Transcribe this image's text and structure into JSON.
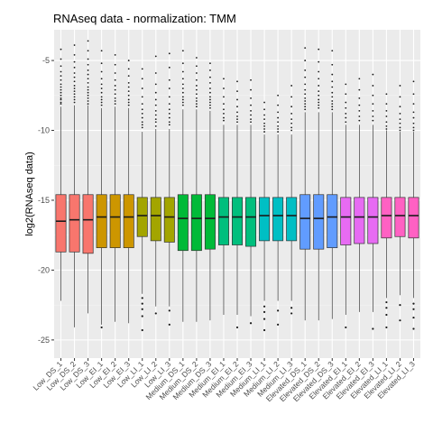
{
  "chart_data": {
    "type": "boxplot",
    "title": "RNAseq data - normalization: TMM",
    "xlabel": "",
    "ylabel": "log2(RNAseq data)",
    "ylim": [
      -26.3,
      -2.8
    ],
    "yticks": [
      -5,
      -10,
      -15,
      -20,
      -25
    ],
    "yticks_labels": [
      "-5",
      "-10",
      "-15",
      "-20",
      "-25"
    ],
    "grid": true,
    "legend": "none",
    "categories": [
      "Low_DS_1",
      "Low_DS_2",
      "Low_DS_3",
      "Low_EI_1",
      "Low_EI_2",
      "Low_EI_3",
      "Low_LI_1",
      "Low_LI_2",
      "Low_LI_3",
      "Medium_DS_1",
      "Medium_DS_2",
      "Medium_DS_3",
      "Medium_EI_1",
      "Medium_EI_2",
      "Medium_EI_3",
      "Medium_LI_1",
      "Medium_LI_2",
      "Medium_LI_3",
      "Elevated_DS_1",
      "Elevated_DS_2",
      "Elevated_DS_3",
      "Elevated_EI_1",
      "Elevated_EI_2",
      "Elevated_EI_3",
      "Elevated_LI_1",
      "Elevated_LI_2",
      "Elevated_LI_3"
    ],
    "colors": [
      "#F8766D",
      "#F8766D",
      "#F8766D",
      "#CD9600",
      "#CD9600",
      "#CD9600",
      "#A3A500",
      "#A3A500",
      "#A3A500",
      "#00BA38",
      "#00BA38",
      "#00BA38",
      "#00BF7D",
      "#00BF7D",
      "#00BF7D",
      "#00BFC4",
      "#00BFC4",
      "#00BFC4",
      "#619CFF",
      "#619CFF",
      "#619CFF",
      "#E76BF3",
      "#E76BF3",
      "#E76BF3",
      "#FF61C3",
      "#FF61C3",
      "#FF61C3"
    ],
    "boxes": [
      {
        "q1": -18.7,
        "median": -16.5,
        "q3": -14.6,
        "whisker_low": -22.2,
        "whisker_high": -8.3
      },
      {
        "q1": -18.7,
        "median": -16.4,
        "q3": -14.6,
        "whisker_low": -24.1,
        "whisker_high": -8.2
      },
      {
        "q1": -18.8,
        "median": -16.4,
        "q3": -14.6,
        "whisker_low": -23.1,
        "whisker_high": -8.2
      },
      {
        "q1": -18.4,
        "median": -16.2,
        "q3": -14.6,
        "whisker_low": -23.9,
        "whisker_high": -8.4
      },
      {
        "q1": -18.4,
        "median": -16.2,
        "q3": -14.6,
        "whisker_low": -23.7,
        "whisker_high": -8.3
      },
      {
        "q1": -18.4,
        "median": -16.2,
        "q3": -14.6,
        "whisker_low": -23.8,
        "whisker_high": -8.4
      },
      {
        "q1": -17.6,
        "median": -16.1,
        "q3": -14.8,
        "whisker_low": -21.7,
        "whisker_high": -10.1
      },
      {
        "q1": -17.9,
        "median": -16.1,
        "q3": -14.8,
        "whisker_low": -22.6,
        "whisker_high": -9.9
      },
      {
        "q1": -18.0,
        "median": -16.2,
        "q3": -14.8,
        "whisker_low": -22.6,
        "whisker_high": -9.9
      },
      {
        "q1": -18.6,
        "median": -16.3,
        "q3": -14.6,
        "whisker_low": -23.7,
        "whisker_high": -8.5
      },
      {
        "q1": -18.6,
        "median": -16.3,
        "q3": -14.6,
        "whisker_low": -23.7,
        "whisker_high": -8.5
      },
      {
        "q1": -18.5,
        "median": -16.3,
        "q3": -14.6,
        "whisker_low": -23.6,
        "whisker_high": -8.6
      },
      {
        "q1": -18.2,
        "median": -16.2,
        "q3": -14.8,
        "whisker_low": -23.2,
        "whisker_high": -9.6
      },
      {
        "q1": -18.2,
        "median": -16.2,
        "q3": -14.8,
        "whisker_low": -23.2,
        "whisker_high": -9.6
      },
      {
        "q1": -18.3,
        "median": -16.2,
        "q3": -14.8,
        "whisker_low": -23.3,
        "whisker_high": -9.6
      },
      {
        "q1": -17.9,
        "median": -16.1,
        "q3": -14.8,
        "whisker_low": -22.2,
        "whisker_high": -10.3
      },
      {
        "q1": -17.9,
        "median": -16.1,
        "q3": -14.8,
        "whisker_low": -22.2,
        "whisker_high": -10.3
      },
      {
        "q1": -17.9,
        "median": -16.1,
        "q3": -14.8,
        "whisker_low": -22.2,
        "whisker_high": -10.3
      },
      {
        "q1": -18.5,
        "median": -16.3,
        "q3": -14.6,
        "whisker_low": -23.6,
        "whisker_high": -8.7
      },
      {
        "q1": -18.5,
        "median": -16.3,
        "q3": -14.6,
        "whisker_low": -23.6,
        "whisker_high": -8.7
      },
      {
        "q1": -18.4,
        "median": -16.2,
        "q3": -14.6,
        "whisker_low": -23.5,
        "whisker_high": -8.7
      },
      {
        "q1": -18.2,
        "median": -16.2,
        "q3": -14.8,
        "whisker_low": -23.2,
        "whisker_high": -9.6
      },
      {
        "q1": -18.1,
        "median": -16.2,
        "q3": -14.8,
        "whisker_low": -23.0,
        "whisker_high": -9.6
      },
      {
        "q1": -18.1,
        "median": -16.2,
        "q3": -14.8,
        "whisker_low": -23.0,
        "whisker_high": -9.6
      },
      {
        "q1": -17.7,
        "median": -16.1,
        "q3": -14.8,
        "whisker_low": -22.0,
        "whisker_high": -10.0
      },
      {
        "q1": -17.6,
        "median": -16.1,
        "q3": -14.8,
        "whisker_low": -21.8,
        "whisker_high": -10.1
      },
      {
        "q1": -17.7,
        "median": -16.1,
        "q3": -14.8,
        "whisker_low": -22.0,
        "whisker_high": -10.1
      }
    ],
    "outliers_high": [
      [
        -4.2,
        -4.9,
        -5.4,
        -5.8,
        -6.1,
        -6.4,
        -6.7,
        -6.9,
        -7.1,
        -7.3,
        -7.5,
        -7.7,
        -7.8,
        -8.0,
        -8.1
      ],
      [
        -3.9,
        -4.6,
        -5.1,
        -5.5,
        -5.9,
        -6.2,
        -6.5,
        -6.8,
        -7.0,
        -7.2,
        -7.4,
        -7.6,
        -7.8,
        -8.0
      ],
      [
        -3.6,
        -4.3,
        -4.9,
        -5.3,
        -5.7,
        -6.0,
        -6.3,
        -6.6,
        -6.9,
        -7.1,
        -7.3,
        -7.5,
        -7.7,
        -7.9,
        -8.1
      ],
      [
        -4.3,
        -5.2,
        -5.8,
        -6.3,
        -6.7,
        -7.0,
        -7.3,
        -7.6,
        -7.8,
        -8.0,
        -8.2
      ],
      [
        -4.6,
        -5.3,
        -5.9,
        -6.4,
        -6.8,
        -7.1,
        -7.4,
        -7.7,
        -7.9,
        -8.1
      ],
      [
        -5.0,
        -5.6,
        -6.1,
        -6.6,
        -6.9,
        -7.2,
        -7.5,
        -7.8,
        -8.0,
        -8.2
      ],
      [
        -5.6,
        -6.3,
        -7.0,
        -7.6,
        -8.1,
        -8.5,
        -8.8,
        -9.1,
        -9.4,
        -9.6,
        -9.8
      ],
      [
        -4.7,
        -5.9,
        -6.7,
        -7.3,
        -7.8,
        -8.2,
        -8.6,
        -8.9,
        -9.2,
        -9.4,
        -9.7
      ],
      [
        -4.5,
        -5.5,
        -6.4,
        -7.0,
        -7.6,
        -8.1,
        -8.5,
        -8.8,
        -9.1,
        -9.4,
        -9.6
      ],
      [
        -4.3,
        -5.2,
        -5.8,
        -6.3,
        -6.7,
        -7.0,
        -7.3,
        -7.6,
        -7.8,
        -8.0,
        -8.2
      ],
      [
        -4.8,
        -5.4,
        -5.9,
        -6.4,
        -6.8,
        -7.1,
        -7.4,
        -7.7,
        -7.9,
        -8.1,
        -8.3
      ],
      [
        -5.2,
        -5.7,
        -6.2,
        -6.6,
        -7.0,
        -7.3,
        -7.6,
        -7.8,
        -8.0,
        -8.2,
        -8.4
      ],
      [
        -6.3,
        -7.0,
        -7.6,
        -8.1,
        -8.5,
        -8.8,
        -9.1,
        -9.3
      ],
      [
        -6.5,
        -7.2,
        -7.8,
        -8.3,
        -8.7,
        -9.0,
        -9.2,
        -9.4
      ],
      [
        -6.4,
        -7.1,
        -7.7,
        -8.2,
        -8.6,
        -8.9,
        -9.2,
        -9.4
      ],
      [
        -8.0,
        -8.5,
        -8.9,
        -9.2,
        -9.5,
        -9.7,
        -9.9,
        -10.1
      ],
      [
        -7.5,
        -8.2,
        -8.7,
        -9.1,
        -9.4,
        -9.7,
        -9.9,
        -10.1
      ],
      [
        -6.8,
        -7.6,
        -8.3,
        -8.8,
        -9.2,
        -9.5,
        -9.8,
        -10.0
      ],
      [
        -4.1,
        -5.0,
        -5.7,
        -6.2,
        -6.7,
        -7.1,
        -7.4,
        -7.7,
        -7.9,
        -8.1,
        -8.3,
        -8.5
      ],
      [
        -4.2,
        -5.1,
        -5.8,
        -6.3,
        -6.8,
        -7.2,
        -7.5,
        -7.8,
        -8.0,
        -8.2,
        -8.4
      ],
      [
        -4.3,
        -5.3,
        -6.0,
        -6.5,
        -6.9,
        -7.3,
        -7.6,
        -7.9,
        -8.1,
        -8.3,
        -8.5
      ],
      [
        -6.7,
        -7.4,
        -8.0,
        -8.4,
        -8.8,
        -9.1,
        -9.4
      ],
      [
        -6.3,
        -7.1,
        -7.7,
        -8.2,
        -8.6,
        -9.0,
        -9.3
      ],
      [
        -6.0,
        -6.8,
        -7.5,
        -8.1,
        -8.6,
        -9.0,
        -9.3
      ],
      [
        -7.4,
        -8.1,
        -8.6,
        -9.0,
        -9.4,
        -9.7,
        -9.9
      ],
      [
        -6.8,
        -7.6,
        -8.3,
        -8.8,
        -9.2,
        -9.5,
        -9.8,
        -10.0
      ],
      [
        -6.5,
        -7.4,
        -8.1,
        -8.7,
        -9.1,
        -9.5,
        -9.8,
        -10.0
      ]
    ],
    "outliers_low": [
      [],
      [],
      [],
      [
        -24.1
      ],
      [],
      [],
      [
        -22.0,
        -22.4,
        -22.8,
        -23.3,
        -24.3
      ],
      [
        -23.1
      ],
      [
        -22.9,
        -23.9
      ],
      [],
      [],
      [],
      [],
      [
        -24.1
      ],
      [
        -23.8
      ],
      [
        -22.6,
        -23.0,
        -23.5,
        -24.3
      ],
      [
        -22.9,
        -23.9
      ],
      [
        -22.7,
        -23.1
      ],
      [],
      [],
      [],
      [
        -24.1
      ],
      [],
      [
        -24.2
      ],
      [
        -22.3,
        -22.7,
        -23.2,
        -24.1
      ],
      [
        -22.5,
        -23.6
      ],
      [
        -22.4,
        -22.8,
        -23.4,
        -24.2
      ]
    ]
  }
}
